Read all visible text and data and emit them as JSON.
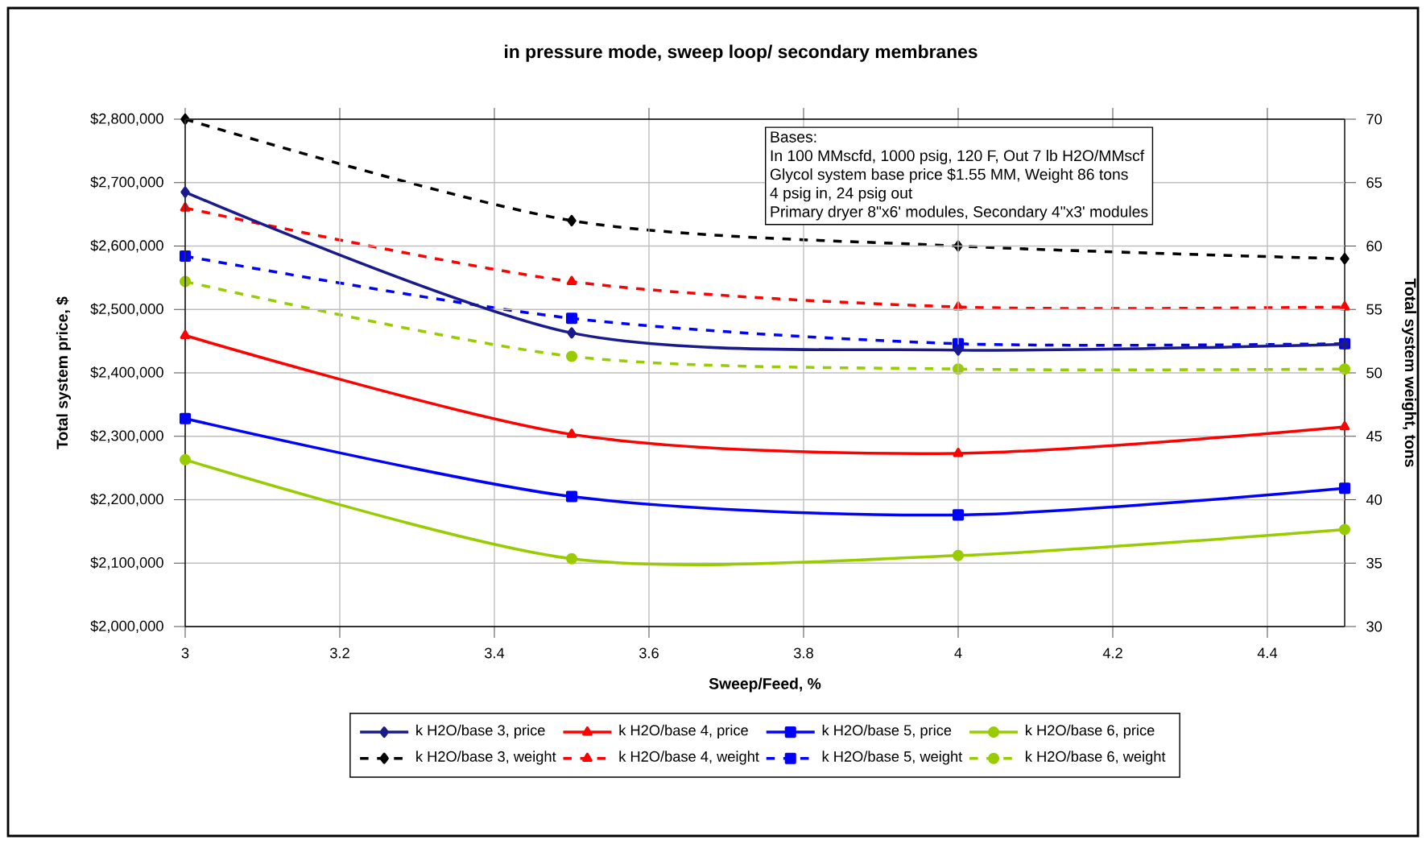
{
  "chart_data": {
    "type": "line",
    "title": "in pressure mode, sweep loop/ secondary membranes",
    "xlabel": "Sweep/Feed, %",
    "ylabel": "Total system price, $",
    "y2label": "Total system weight, tons",
    "x": [
      3,
      3.5,
      4,
      4.5
    ],
    "xlim": [
      3,
      4.5
    ],
    "xticks": [
      3,
      3.2,
      3.4,
      3.6,
      3.8,
      4,
      4.2,
      4.4
    ],
    "ylim": [
      2000000,
      2800000
    ],
    "yticks": [
      {
        "value": 2000000,
        "label": "$2,000,000"
      },
      {
        "value": 2100000,
        "label": "$2,100,000"
      },
      {
        "value": 2200000,
        "label": "$2,200,000"
      },
      {
        "value": 2300000,
        "label": "$2,300,000"
      },
      {
        "value": 2400000,
        "label": "$2,400,000"
      },
      {
        "value": 2500000,
        "label": "$2,500,000"
      },
      {
        "value": 2600000,
        "label": "$2,600,000"
      },
      {
        "value": 2700000,
        "label": "$2,700,000"
      },
      {
        "value": 2800000,
        "label": "$2,800,000"
      }
    ],
    "y2lim": [
      30,
      70
    ],
    "y2ticks": [
      30,
      35,
      40,
      45,
      50,
      55,
      60,
      65,
      70
    ],
    "grid": true,
    "legend": "bottom",
    "series": [
      {
        "name": "k H2O/base 3, price",
        "color": "#1a1a8c",
        "marker": "diamond",
        "line_style": "solid",
        "values": [
          2685000,
          2463000,
          2436000,
          2445000
        ]
      },
      {
        "name": "k H2O/base 4, price",
        "color": "#ff0000",
        "marker": "triangle",
        "line_style": "solid",
        "values": [
          2459000,
          2303000,
          2273000,
          2315000
        ]
      },
      {
        "name": "k H2O/base 5, price",
        "color": "#0000ff",
        "marker": "square",
        "line_style": "solid",
        "values": [
          2328000,
          2205000,
          2176000,
          2218000
        ]
      },
      {
        "name": "k H2O/base 6, price",
        "color": "#99cc00",
        "marker": "circle",
        "line_style": "solid",
        "values": [
          2263000,
          2107000,
          2112000,
          2153000
        ]
      },
      {
        "name": "k H2O/base 3, weight",
        "color": "#000000",
        "marker": "diamond",
        "line_style": "dashed",
        "axis": "y2",
        "values": [
          70,
          62,
          60,
          59
        ]
      },
      {
        "name": "k H2O/base 4, weight",
        "color": "#ff0000",
        "marker": "triangle",
        "line_style": "dashed",
        "axis": "y2",
        "values": [
          63,
          57.2,
          55.2,
          55.2
        ]
      },
      {
        "name": "k H2O/base 5, weight",
        "color": "#0000ff",
        "marker": "square",
        "line_style": "dashed",
        "axis": "y2",
        "values": [
          59.2,
          54.3,
          52.3,
          52.3
        ]
      },
      {
        "name": "k H2O/base 6, weight",
        "color": "#99cc00",
        "marker": "circle",
        "line_style": "dashed",
        "axis": "y2",
        "values": [
          57.2,
          51.3,
          50.3,
          50.3
        ]
      }
    ],
    "annotations": [
      "Bases:",
      "In 100 MMscfd, 1000 psig, 120 F, Out 7 lb H2O/MMscf",
      "Glycol system base price $1.55 MM, Weight 86 tons",
      "4 psig in, 24 psig out",
      "Primary dryer 8\"x6' modules, Secondary 4\"x3' modules"
    ]
  }
}
